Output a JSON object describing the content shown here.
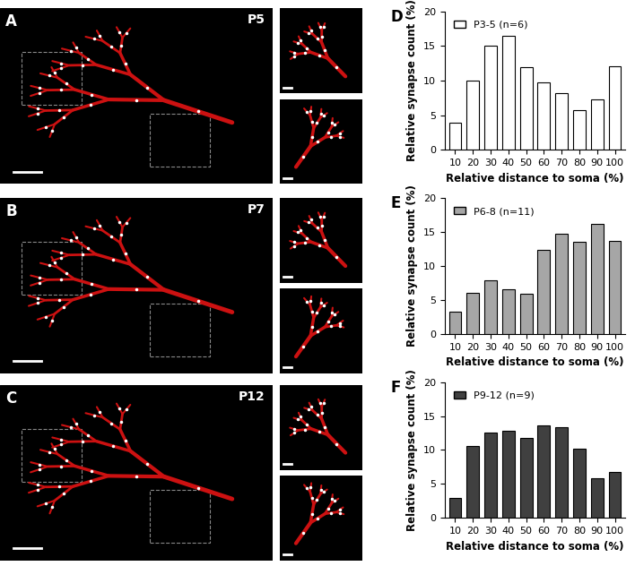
{
  "images": [
    {
      "panel": "A",
      "label": "P5"
    },
    {
      "panel": "B",
      "label": "P7"
    },
    {
      "panel": "C",
      "label": "P12"
    }
  ],
  "chart_data": [
    {
      "type": "bar",
      "annotations": [
        "D"
      ],
      "x_label": "Relative distance to soma (%)",
      "y_label": "Relative synapse count (%)",
      "categories": [
        "10",
        "20",
        "30",
        "40",
        "50",
        "60",
        "70",
        "80",
        "90",
        "100"
      ],
      "series": [
        {
          "name": "P3-5 (n=6)",
          "color": "#ffffff",
          "values": [
            4.0,
            10.0,
            15.0,
            16.5,
            12.0,
            9.8,
            8.2,
            5.7,
            7.3,
            12.1
          ]
        }
      ],
      "ylim": [
        0,
        20
      ],
      "yticks": [
        0,
        5,
        10,
        15,
        20
      ],
      "legend": "upper left"
    },
    {
      "type": "bar",
      "annotations": [
        "E"
      ],
      "x_label": "Relative distance to soma (%)",
      "y_label": "Relative synapse count (%)",
      "categories": [
        "10",
        "20",
        "30",
        "40",
        "50",
        "60",
        "70",
        "80",
        "90",
        "100"
      ],
      "series": [
        {
          "name": "P6-8 (n=11)",
          "color": "#a6a6a6",
          "values": [
            3.3,
            6.1,
            7.9,
            6.6,
            5.9,
            12.4,
            14.8,
            13.5,
            16.2,
            13.7
          ]
        }
      ],
      "ylim": [
        0,
        20
      ],
      "yticks": [
        0,
        5,
        10,
        15,
        20
      ],
      "legend": "upper left"
    },
    {
      "type": "bar",
      "annotations": [
        "F"
      ],
      "x_label": "Relative distance to soma (%)",
      "y_label": "Relative synapse count (%)",
      "categories": [
        "10",
        "20",
        "30",
        "40",
        "50",
        "60",
        "70",
        "80",
        "90",
        "100"
      ],
      "series": [
        {
          "name": "P9-12 (n=9)",
          "color": "#404040",
          "values": [
            3.0,
            10.6,
            12.5,
            12.8,
            11.8,
            13.6,
            13.4,
            10.2,
            5.8,
            6.7
          ]
        }
      ],
      "ylim": [
        0,
        20
      ],
      "yticks": [
        0,
        5,
        10,
        15,
        20
      ],
      "legend": "upper left"
    }
  ]
}
